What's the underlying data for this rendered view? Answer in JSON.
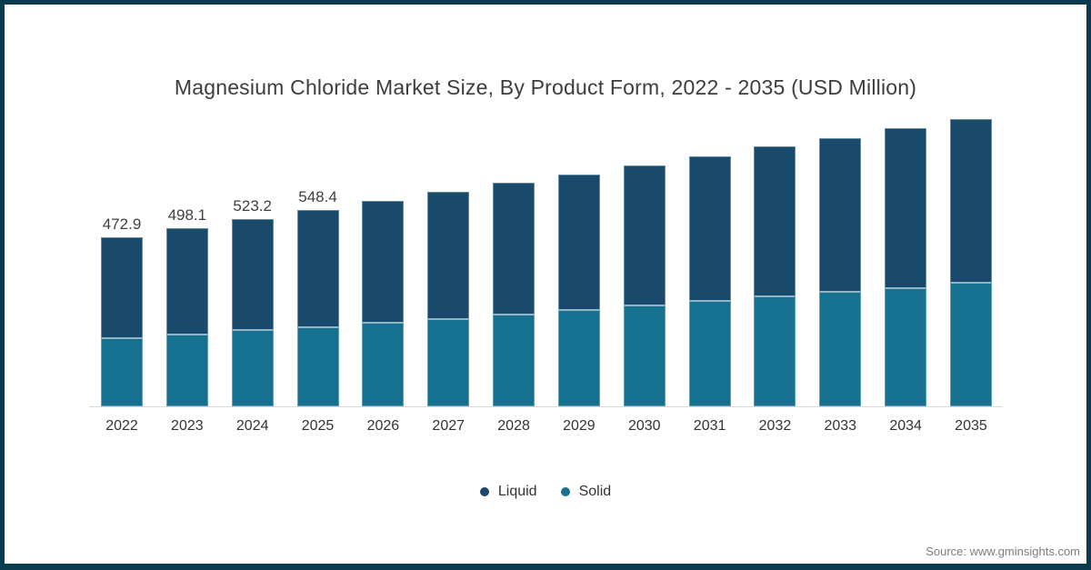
{
  "title": "Magnesium Chloride Market Size, By Product Form, 2022 - 2035 (USD Million)",
  "source": "Source: www.gminsights.com",
  "legend": {
    "items": [
      {
        "label": "Liquid",
        "color": "#1A4A6B"
      },
      {
        "label": "Solid",
        "color": "#15718F"
      }
    ]
  },
  "colors": {
    "liquid": "#1A4A6B",
    "solid": "#15718F",
    "frame_border": "#0B3C4D",
    "axis_line": "#D9D9D9",
    "segment_divider": "#8FB5C6",
    "label_text": "#404040"
  },
  "chart_data": {
    "type": "bar",
    "stacked": true,
    "title": "Magnesium Chloride Market Size, By Product Form, 2022 - 2035 (USD Million)",
    "unit": "USD Million",
    "categories": [
      "2022",
      "2023",
      "2024",
      "2025",
      "2026",
      "2027",
      "2028",
      "2029",
      "2030",
      "2031",
      "2032",
      "2033",
      "2034",
      "2035"
    ],
    "series": [
      {
        "name": "Liquid",
        "color": "#1A4A6B",
        "values": [
          278.9,
          295.1,
          308.2,
          324.4,
          338.8,
          352.0,
          365.5,
          377.8,
          388.3,
          402.6,
          416.4,
          427.5,
          443.3,
          455.6
        ]
      },
      {
        "name": "Solid",
        "color": "#15718F",
        "values": [
          194.0,
          203.0,
          215.0,
          224.0,
          235.0,
          247.0,
          259.0,
          271.0,
          285.0,
          296.0,
          309.0,
          322.0,
          333.0,
          347.0
        ]
      }
    ],
    "stack_bottom_to_top": [
      "Solid",
      "Liquid"
    ],
    "totals": [
      472.9,
      498.1,
      523.2,
      548.4,
      573.8,
      599.0,
      624.5,
      648.8,
      673.3,
      698.6,
      725.4,
      749.5,
      776.3,
      802.6
    ],
    "visible_total_labels": [
      "472.9",
      "498.1",
      "523.2",
      "548.4",
      null,
      null,
      null,
      null,
      null,
      null,
      null,
      null,
      null,
      null
    ],
    "ylim": [
      0,
      820
    ],
    "value_axis_hidden": true,
    "grid": false,
    "legend_position": "bottom"
  }
}
